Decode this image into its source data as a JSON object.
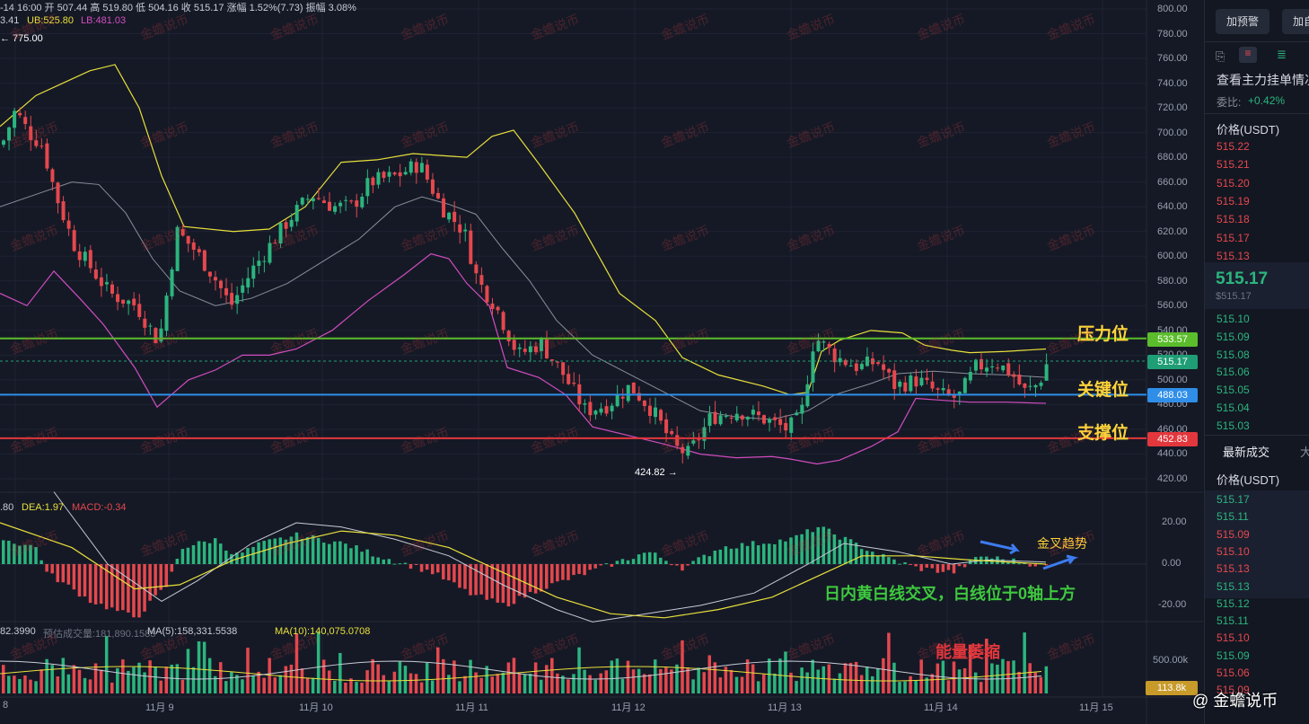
{
  "header": {
    "line1": "-14 16:00  开 507.44 高 519.80 低 504.16 收 515.17 涨幅 1.52%(7.73) 振幅 3.08%",
    "ma_prefix": "3.41",
    "ub": "UB:525.80",
    "lb": "LB:481.03",
    "high_marker": "← 775.00",
    "low_marker": "424.82 →"
  },
  "price_axis": [
    "800.00",
    "780.00",
    "760.00",
    "740.00",
    "720.00",
    "700.00",
    "680.00",
    "660.00",
    "640.00",
    "620.00",
    "600.00",
    "580.00",
    "560.00",
    "540.00",
    "520.00",
    "500.00",
    "480.00",
    "460.00",
    "440.00",
    "420.00"
  ],
  "price_tags": {
    "pressure": "533.57",
    "current": "515.17",
    "key": "488.03",
    "support": "452.83"
  },
  "annotations": {
    "pressure": "压力位",
    "key": "关键位",
    "support": "支撑位",
    "golden_cross": "金叉趋势",
    "intraday": "日内黄白线交叉，白线位于0轴上方",
    "volume": "能量萎缩"
  },
  "macd": {
    "dif": ".80",
    "dea": "DEA:1.97",
    "macd": "MACD:-0.34",
    "axis": [
      "20.00",
      "0.00",
      "-20.00"
    ]
  },
  "volume": {
    "v_prefix": "82.3990",
    "estimate": "预估成交量:181,890.1583",
    "ma5": "MA(5):158,331.5538",
    "ma10": "MA(10):140,075.0708",
    "axis_top": "500.00k",
    "current_tag": "113.8k"
  },
  "x_axis": [
    "8",
    "11月 9",
    "11月 10",
    "11月 11",
    "11月 12",
    "11月 13",
    "11月 14",
    "11月 15"
  ],
  "watermark": "金蟾说币",
  "footer_brand": "@ 金蟾说币",
  "side": {
    "btn_alert": "加预警",
    "btn_add": "加自",
    "title": "查看主力挂单情况",
    "ratio_label": "委比:",
    "ratio_value": "+0.42%",
    "col_price": "价格(USDT)",
    "asks": [
      "515.22",
      "515.21",
      "515.20",
      "515.19",
      "515.18",
      "515.17",
      "515.13"
    ],
    "last_price": "515.17",
    "last_price_sub": "$515.17",
    "bids": [
      "515.10",
      "515.09",
      "515.08",
      "515.06",
      "515.05",
      "515.04",
      "515.03"
    ],
    "trades_tab": "最新成交",
    "trades_tab2": "大",
    "trades_col": "价格(USDT)",
    "trades": [
      {
        "p": "515.17",
        "c": "green"
      },
      {
        "p": "515.11",
        "c": "green"
      },
      {
        "p": "515.09",
        "c": "red"
      },
      {
        "p": "515.10",
        "c": "red"
      },
      {
        "p": "515.13",
        "c": "red"
      },
      {
        "p": "515.13",
        "c": "green"
      },
      {
        "p": "515.12",
        "c": "green"
      },
      {
        "p": "515.11",
        "c": "green"
      },
      {
        "p": "515.10",
        "c": "red"
      },
      {
        "p": "515.09",
        "c": "green"
      },
      {
        "p": "515.06",
        "c": "red"
      },
      {
        "p": "515.09",
        "c": "red"
      }
    ]
  },
  "colors": {
    "up": "#2bb57e",
    "down": "#e5484d",
    "pressure": "#5bbd2b",
    "key": "#2f8ee8",
    "support": "#e2373c",
    "upper": "#e8e03a",
    "lower": "#d14dbf",
    "mid": "#8a8e9a"
  }
}
